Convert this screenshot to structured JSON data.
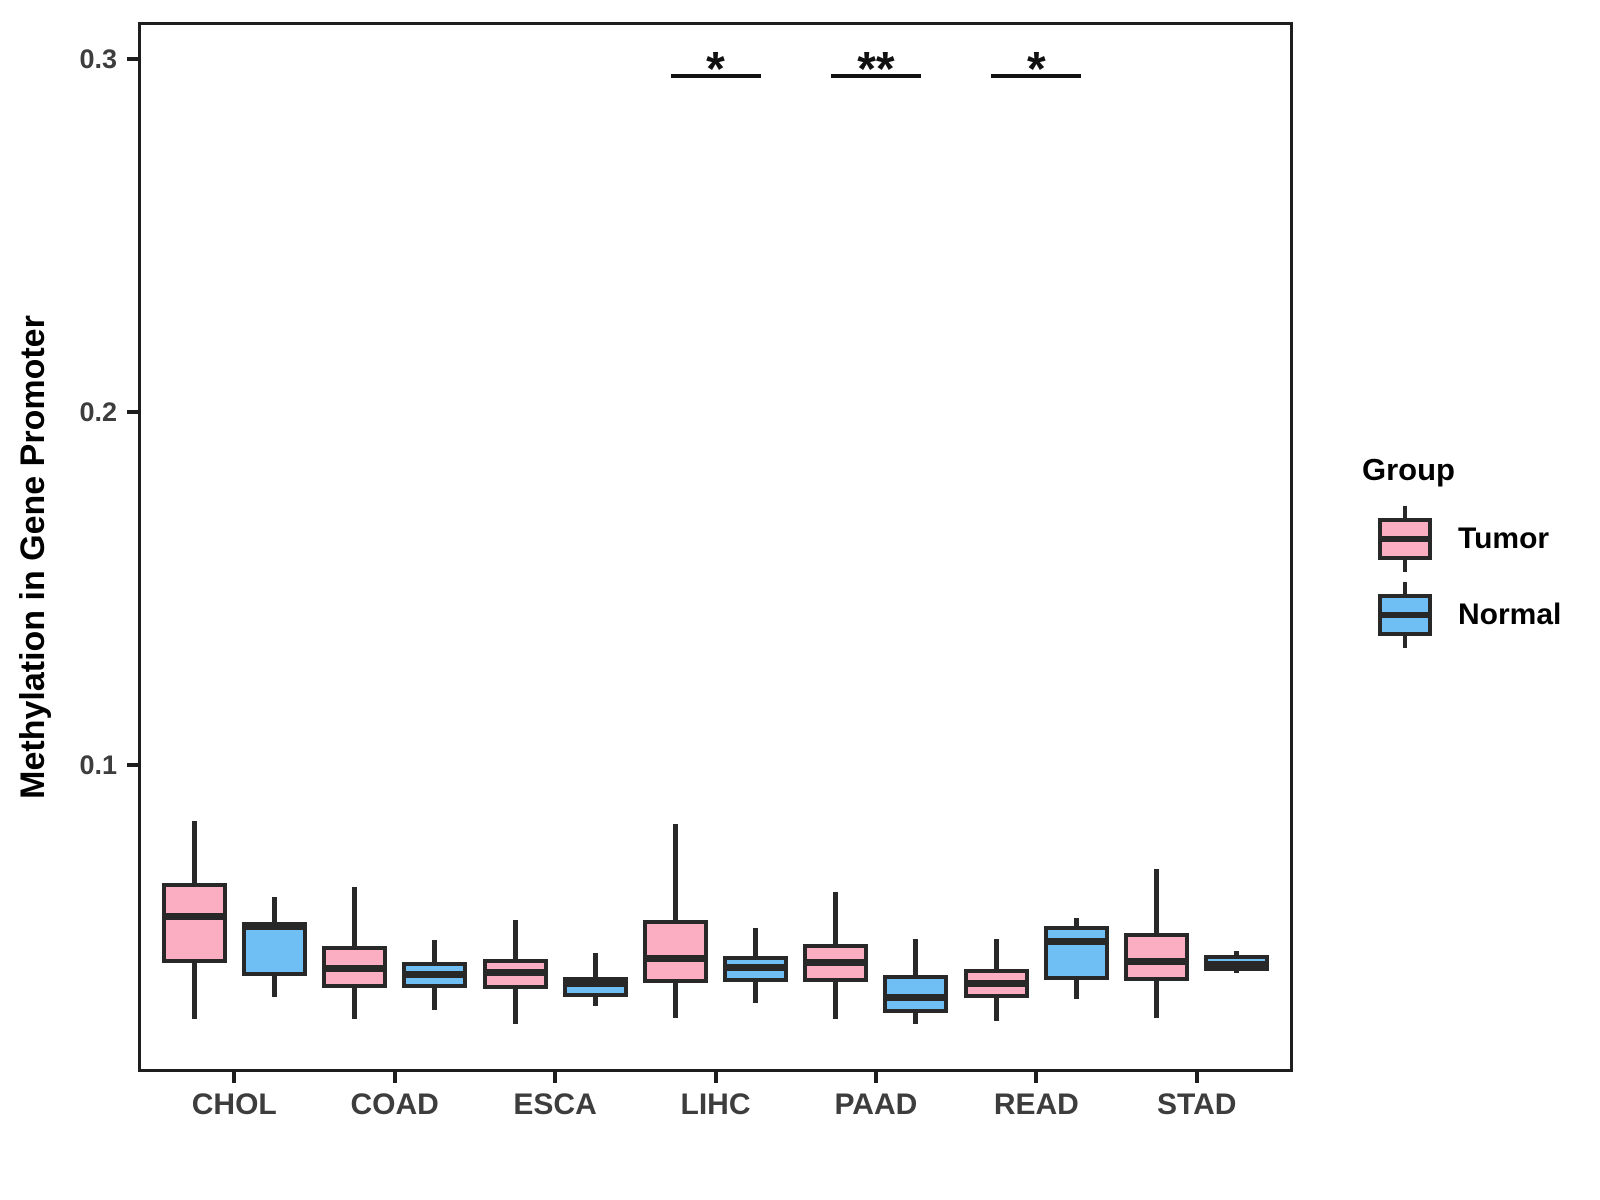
{
  "chart_data": {
    "type": "boxplot",
    "title": "",
    "xlabel": "",
    "ylabel": "Methylation in Gene Promoter",
    "categories": [
      "CHOL",
      "COAD",
      "ESCA",
      "LIHC",
      "PAAD",
      "READ",
      "STAD"
    ],
    "y_ticks": [
      0.1,
      0.2,
      0.3
    ],
    "ylim": [
      0.013,
      0.3105
    ],
    "grid": false,
    "legend_title": "Group",
    "legend_position": "right",
    "series": [
      {
        "name": "Tumor",
        "color": "#FBAEC1",
        "boxes": [
          {
            "category": "CHOL",
            "low": 0.028,
            "q1": 0.044,
            "median": 0.057,
            "q3": 0.0665,
            "high": 0.084
          },
          {
            "category": "COAD",
            "low": 0.028,
            "q1": 0.0368,
            "median": 0.0422,
            "q3": 0.0487,
            "high": 0.0655
          },
          {
            "category": "ESCA",
            "low": 0.0265,
            "q1": 0.0366,
            "median": 0.0411,
            "q3": 0.045,
            "high": 0.056
          },
          {
            "category": "LIHC",
            "low": 0.0283,
            "q1": 0.0382,
            "median": 0.0451,
            "q3": 0.056,
            "high": 0.0833
          },
          {
            "category": "PAAD",
            "low": 0.028,
            "q1": 0.0386,
            "median": 0.0439,
            "q3": 0.0493,
            "high": 0.064
          },
          {
            "category": "READ",
            "low": 0.0275,
            "q1": 0.034,
            "median": 0.0382,
            "q3": 0.0422,
            "high": 0.0507
          },
          {
            "category": "STAD",
            "low": 0.0283,
            "q1": 0.0388,
            "median": 0.0442,
            "q3": 0.0524,
            "high": 0.0706
          }
        ]
      },
      {
        "name": "Normal",
        "color": "#70BFF4",
        "boxes": [
          {
            "category": "CHOL",
            "low": 0.0343,
            "q1": 0.0402,
            "median": 0.0541,
            "q3": 0.0555,
            "high": 0.0626
          },
          {
            "category": "COAD",
            "low": 0.0306,
            "q1": 0.0368,
            "median": 0.0405,
            "q3": 0.0442,
            "high": 0.0504
          },
          {
            "category": "ESCA",
            "low": 0.0317,
            "q1": 0.0343,
            "median": 0.038,
            "q3": 0.04,
            "high": 0.0467
          },
          {
            "category": "LIHC",
            "low": 0.0326,
            "q1": 0.0385,
            "median": 0.0425,
            "q3": 0.0459,
            "high": 0.0538
          },
          {
            "category": "PAAD",
            "low": 0.0266,
            "q1": 0.0297,
            "median": 0.034,
            "q3": 0.0405,
            "high": 0.0507
          },
          {
            "category": "READ",
            "low": 0.0337,
            "q1": 0.0391,
            "median": 0.0501,
            "q3": 0.0544,
            "high": 0.0567
          },
          {
            "category": "STAD",
            "low": 0.0411,
            "q1": 0.0417,
            "median": 0.0436,
            "q3": 0.0462,
            "high": 0.0473
          }
        ]
      }
    ],
    "significance": [
      {
        "category": "LIHC",
        "label": "*"
      },
      {
        "category": "PAAD",
        "label": "**"
      },
      {
        "category": "READ",
        "label": "*"
      }
    ]
  },
  "legend": {
    "title": "Group",
    "items": [
      {
        "label": "Tumor",
        "color": "#FBAEC1"
      },
      {
        "label": "Normal",
        "color": "#70BFF4"
      }
    ]
  },
  "colors": {
    "tumor": "#FBAEC1",
    "normal": "#70BFF4",
    "box_line": "#282828",
    "panel_border": "#1e1e1e",
    "axis_text": "#3d3d3d",
    "sig_mark": "#111111"
  }
}
